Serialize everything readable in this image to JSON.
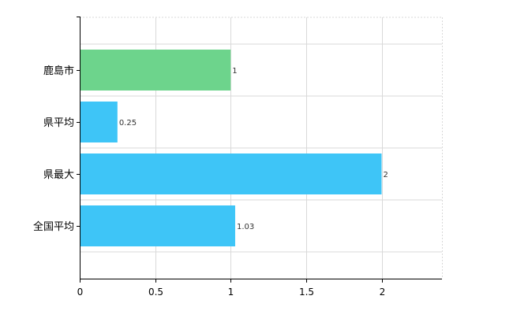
{
  "chart_data": {
    "type": "bar",
    "orientation": "horizontal",
    "categories": [
      "鹿島市",
      "県平均",
      "県最大",
      "全国平均"
    ],
    "values": [
      1,
      0.25,
      2,
      1.03
    ],
    "value_labels": [
      "1",
      "0.25",
      "2",
      "1.03"
    ],
    "bar_colors": [
      "#6dd48c",
      "#3ec5f7",
      "#3ec5f7",
      "#3ec5f7"
    ],
    "xlim": [
      0,
      2.4
    ],
    "x_ticks": [
      0,
      0.5,
      1,
      1.5,
      2
    ],
    "x_tick_labels": [
      "0",
      "0.5",
      "1",
      "1.5",
      "2"
    ],
    "grid": true,
    "title": "",
    "xlabel": "",
    "ylabel": ""
  }
}
